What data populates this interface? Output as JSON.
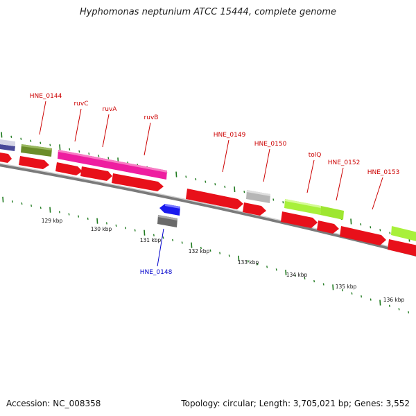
{
  "header": {
    "title": "Hyphomonas neptunium ATCC 15444, complete genome"
  },
  "footer": {
    "accession": "Accession: NC_008358",
    "stats": "Topology: circular; Length: 3,705,021 bp; Genes: 3,552"
  },
  "colors": {
    "cds_forward": "#e8101a",
    "magenta": "#ee1ea0",
    "olive": "#6b8c2a",
    "lime": "#a8f03a",
    "gray": "#b6b6b6",
    "dark_gray": "#6a6a6a",
    "blue": "#1a1aee",
    "navy": "#4a4a99",
    "label_red": "#cc0000",
    "label_blue": "#0000cc",
    "tick_green": "#1f7a1f"
  },
  "scale": {
    "ticks": [
      "129 kbp",
      "130 kbp",
      "131 kbp",
      "132 kbp",
      "133 kbp",
      "134 kbp",
      "135 kbp",
      "136 kbp"
    ]
  },
  "gene_labels": [
    {
      "name": "HNE_0144",
      "strand": "forward"
    },
    {
      "name": "ruvC",
      "strand": "forward"
    },
    {
      "name": "ruvA",
      "strand": "forward"
    },
    {
      "name": "ruvB",
      "strand": "forward"
    },
    {
      "name": "HNE_0149",
      "strand": "forward"
    },
    {
      "name": "HNE_0150",
      "strand": "forward"
    },
    {
      "name": "tolQ",
      "strand": "forward"
    },
    {
      "name": "HNE_0152",
      "strand": "forward"
    },
    {
      "name": "HNE_0153",
      "strand": "forward"
    },
    {
      "name": "HNE_0148",
      "strand": "reverse"
    }
  ]
}
